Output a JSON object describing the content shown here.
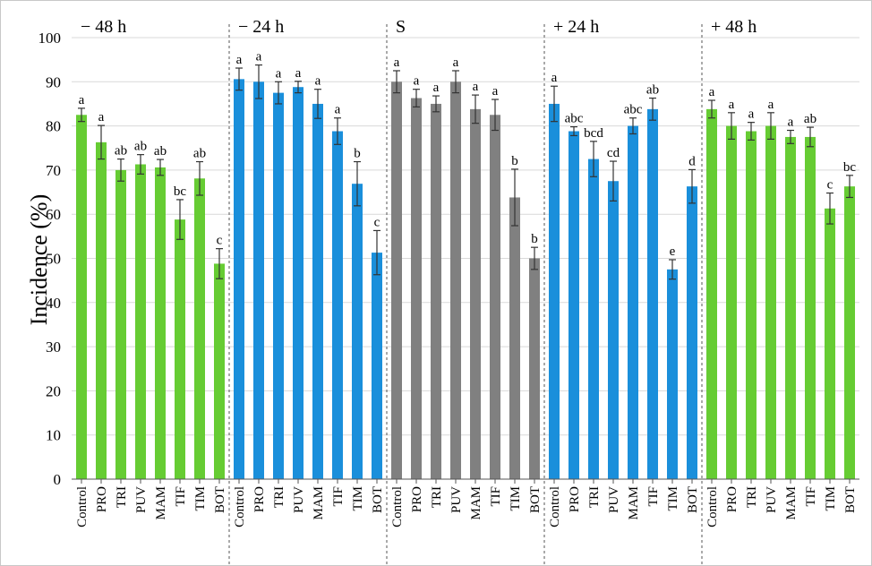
{
  "chart_data": {
    "type": "bar",
    "ylabel": "Incidence (%)",
    "ylim": [
      0,
      100
    ],
    "yticks": [
      0,
      10,
      20,
      30,
      40,
      50,
      60,
      70,
      80,
      90,
      100
    ],
    "grid": true,
    "categories": [
      "Control",
      "PRO",
      "TRI",
      "PUV",
      "MAM",
      "TIF",
      "TIM",
      "BOT"
    ],
    "groups": [
      {
        "label": "− 48 h",
        "color": "#66cc33",
        "values": [
          82.5,
          76.3,
          70.0,
          71.3,
          70.6,
          58.8,
          68.1,
          48.8
        ],
        "errors": [
          1.5,
          3.8,
          2.5,
          2.2,
          1.8,
          4.5,
          3.8,
          3.4
        ],
        "letters": [
          "a",
          "a",
          "ab",
          "ab",
          "ab",
          "bc",
          "ab",
          "c"
        ]
      },
      {
        "label": "− 24 h",
        "color": "#1a8fdb",
        "values": [
          90.6,
          90.0,
          87.5,
          88.8,
          85.0,
          78.8,
          66.9,
          51.3
        ],
        "errors": [
          2.5,
          3.8,
          2.5,
          1.3,
          3.3,
          3.0,
          5.0,
          5.0
        ],
        "letters": [
          "a",
          "a",
          "a",
          "a",
          "a",
          "a",
          "b",
          "c"
        ]
      },
      {
        "label": "S",
        "color": "#808080",
        "values": [
          90.0,
          86.3,
          85.0,
          90.0,
          83.8,
          82.5,
          63.8,
          50.0
        ],
        "errors": [
          2.5,
          2.0,
          1.8,
          2.5,
          3.2,
          3.5,
          6.4,
          2.5
        ],
        "letters": [
          "a",
          "a",
          "a",
          "a",
          "a",
          "a",
          "b",
          "b"
        ]
      },
      {
        "label": "+ 24 h",
        "color": "#1a8fdb",
        "values": [
          85.0,
          78.8,
          72.5,
          67.5,
          80.0,
          83.8,
          47.5,
          66.3
        ],
        "errors": [
          4.0,
          1.0,
          4.0,
          4.5,
          1.8,
          2.5,
          2.2,
          3.8
        ],
        "letters": [
          "a",
          "abc",
          "bcd",
          "cd",
          "abc",
          "ab",
          "e",
          "d"
        ]
      },
      {
        "label": "+ 48 h",
        "color": "#66cc33",
        "values": [
          83.8,
          80.0,
          78.8,
          80.0,
          77.5,
          77.5,
          61.3,
          66.3
        ],
        "errors": [
          2.0,
          3.0,
          2.0,
          3.0,
          1.5,
          2.2,
          3.5,
          2.5
        ],
        "letters": [
          "a",
          "a",
          "a",
          "a",
          "a",
          "ab",
          "c",
          "bc"
        ]
      }
    ]
  }
}
